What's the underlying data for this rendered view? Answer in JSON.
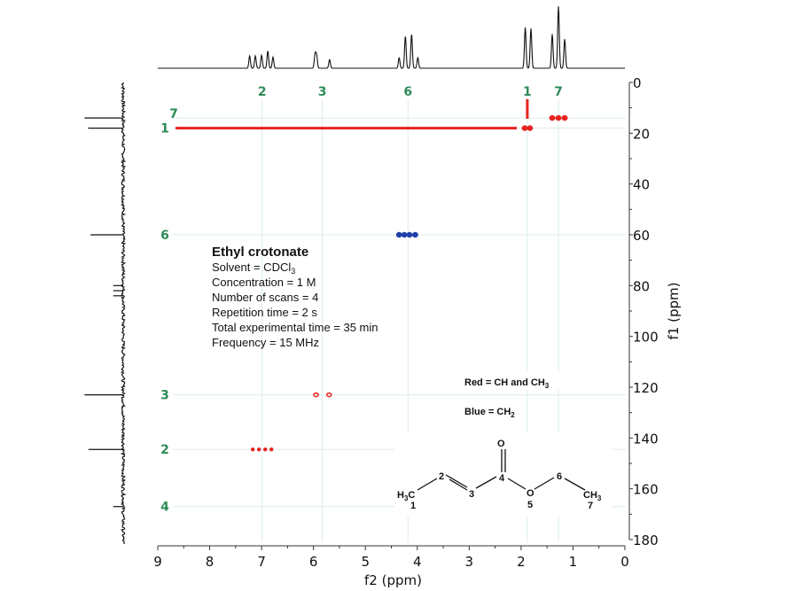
{
  "chart_data": {
    "type": "scatter",
    "subtype": "2D NMR HSQC (edited)",
    "xlabel": "f2 (ppm)",
    "ylabel": "f1 (ppm)",
    "xlim": [
      9,
      0
    ],
    "ylim": [
      0,
      180
    ],
    "x_ticks": [
      "9",
      "8",
      "7",
      "6",
      "5",
      "4",
      "3",
      "2",
      "1",
      "0"
    ],
    "x_tick_values": [
      9,
      8,
      7,
      6,
      5,
      4,
      3,
      2,
      1,
      0
    ],
    "y_ticks": [
      "0",
      "20",
      "40",
      "60",
      "80",
      "100",
      "120",
      "140",
      "160",
      "180"
    ],
    "y_tick_values": [
      0,
      20,
      40,
      60,
      80,
      100,
      120,
      140,
      160,
      180
    ],
    "grid": true,
    "f2_peak_labels": [
      {
        "label": "2",
        "ppm": 6.99
      },
      {
        "label": "3",
        "ppm": 5.83
      },
      {
        "label": "6",
        "ppm": 4.18
      },
      {
        "label": "1",
        "ppm": 1.88
      },
      {
        "label": "7",
        "ppm": 1.28
      }
    ],
    "f1_peak_labels": [
      {
        "label": "7",
        "ppm": 14
      },
      {
        "label": "1",
        "ppm": 18
      },
      {
        "label": "6",
        "ppm": 60
      },
      {
        "label": "3",
        "ppm": 123
      },
      {
        "label": "2",
        "ppm": 144.5
      },
      {
        "label": "4",
        "ppm": 167
      }
    ],
    "series": [
      {
        "name": "Red = CH and CH3",
        "color": "#e8231f",
        "points": [
          {
            "f2": 1.93,
            "f1": 18
          },
          {
            "f2": 1.83,
            "f1": 18
          },
          {
            "f2": 1.4,
            "f1": 14
          },
          {
            "f2": 1.28,
            "f1": 14
          },
          {
            "f2": 1.16,
            "f1": 14
          },
          {
            "f2": 5.95,
            "f1": 123
          },
          {
            "f2": 5.7,
            "f1": 123
          },
          {
            "f2": 7.17,
            "f1": 144.5
          },
          {
            "f2": 7.05,
            "f1": 144.5
          },
          {
            "f2": 6.93,
            "f1": 144.5
          },
          {
            "f2": 6.81,
            "f1": 144.5
          }
        ]
      },
      {
        "name": "Blue = CH2",
        "color": "#1f3fa8",
        "points": [
          {
            "f2": 4.35,
            "f1": 60
          },
          {
            "f2": 4.25,
            "f1": 60
          },
          {
            "f2": 4.15,
            "f1": 60
          },
          {
            "f2": 4.04,
            "f1": 60
          }
        ]
      }
    ],
    "f2_projection_peaks": [
      {
        "ppm": 7.23,
        "h": 0.2
      },
      {
        "ppm": 7.12,
        "h": 0.2
      },
      {
        "ppm": 7.0,
        "h": 0.21
      },
      {
        "ppm": 6.88,
        "h": 0.28
      },
      {
        "ppm": 6.78,
        "h": 0.18
      },
      {
        "ppm": 5.97,
        "h": 0.22
      },
      {
        "ppm": 5.94,
        "h": 0.2
      },
      {
        "ppm": 5.69,
        "h": 0.14
      },
      {
        "ppm": 4.35,
        "h": 0.17
      },
      {
        "ppm": 4.23,
        "h": 0.52
      },
      {
        "ppm": 4.11,
        "h": 0.55
      },
      {
        "ppm": 3.99,
        "h": 0.17
      },
      {
        "ppm": 1.92,
        "h": 0.66
      },
      {
        "ppm": 1.81,
        "h": 0.64
      },
      {
        "ppm": 1.4,
        "h": 0.55
      },
      {
        "ppm": 1.28,
        "h": 1.0
      },
      {
        "ppm": 1.16,
        "h": 0.47
      }
    ],
    "f1_projection_peaks": [
      {
        "ppm": 14,
        "h": 0.97
      },
      {
        "ppm": 18,
        "h": 0.88
      },
      {
        "ppm": 60,
        "h": 0.82
      },
      {
        "ppm": 80,
        "h": 0.25
      },
      {
        "ppm": 82,
        "h": 0.25
      },
      {
        "ppm": 84,
        "h": 0.25
      },
      {
        "ppm": 123,
        "h": 0.97
      },
      {
        "ppm": 144.5,
        "h": 0.87
      },
      {
        "ppm": 167,
        "h": 0.25
      }
    ],
    "correlation_line_color": "#e8231f",
    "peak_label_color": "#2e8b57"
  },
  "info": {
    "title": "Ethyl crotonate",
    "solvent_prefix": "Solvent = CDCl",
    "solvent_sub": "3",
    "lines": [
      "Concentration = 1 M",
      "Number of scans = 4",
      "Repetition time = 2 s",
      "Total experimental time = 35 min",
      "Frequency = 15 MHz"
    ]
  },
  "legend": {
    "red_prefix": "Red = CH and CH",
    "red_sub": "3",
    "blue_prefix": "Blue = CH",
    "blue_sub": "2"
  },
  "molecule": {
    "h3c_H": "H",
    "h3c_sub": "3",
    "h3c_C": "C",
    "ch3_C": "CH",
    "ch3_sub": "3",
    "O_carbonyl": "O",
    "O_ester": "O",
    "num1": "1",
    "num2": "2",
    "num3": "3",
    "num4": "4",
    "num5": "5",
    "num6": "6",
    "num7": "7"
  }
}
